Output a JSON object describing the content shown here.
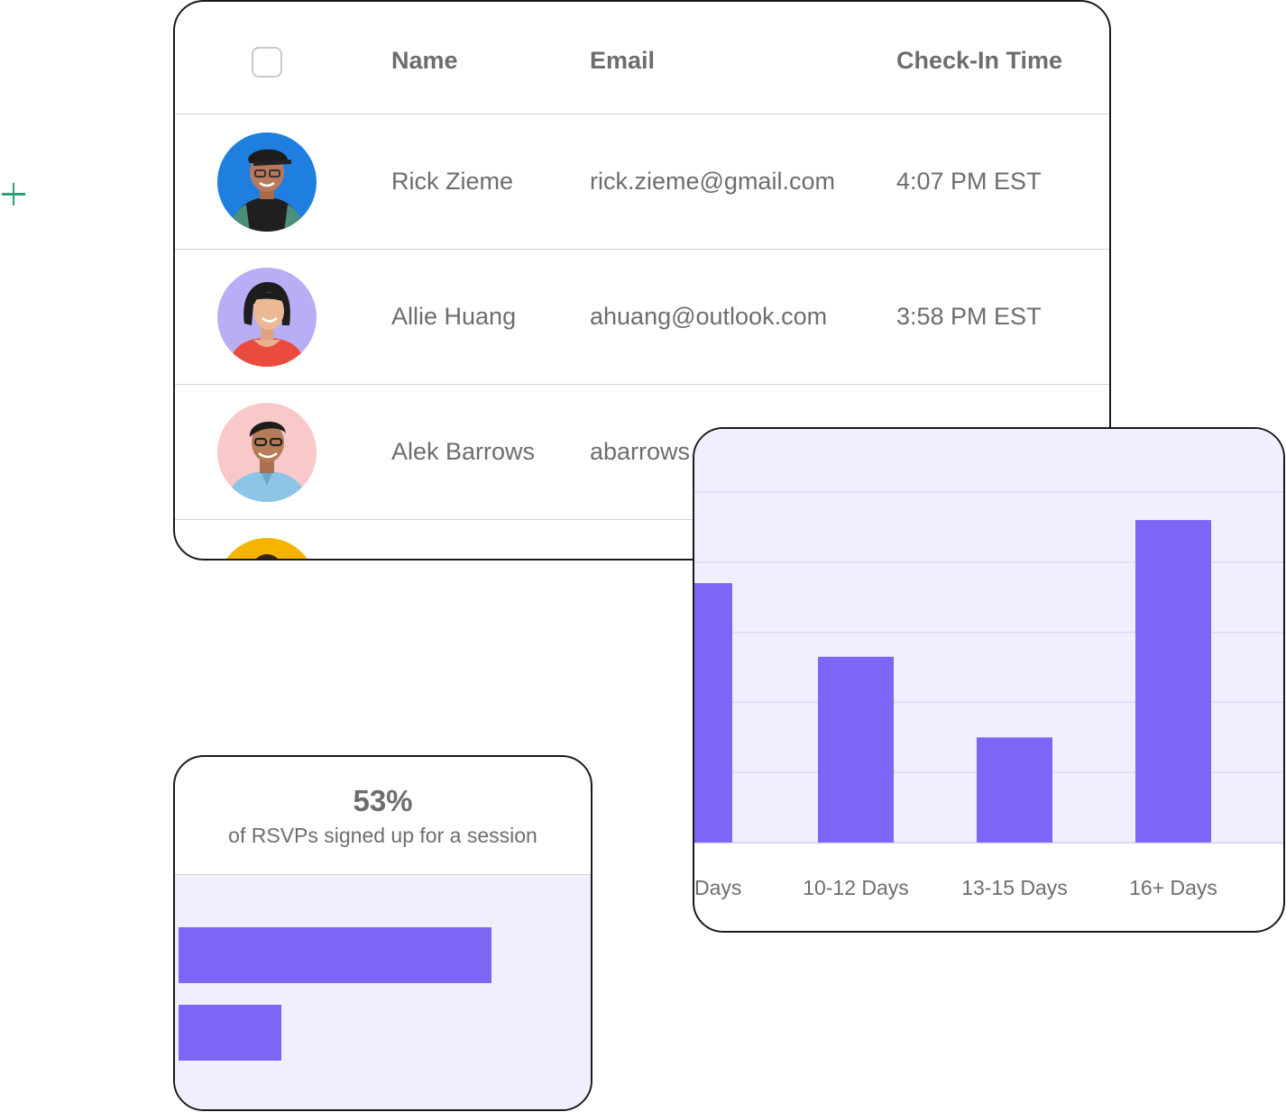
{
  "table": {
    "headers": {
      "name": "Name",
      "email": "Email",
      "checkin": "Check-In Time"
    },
    "rows": [
      {
        "name": "Rick Zieme",
        "email": "rick.zieme@gmail.com",
        "time": "4:07 PM EST",
        "avatar_bg": "#1f7fe0"
      },
      {
        "name": "Allie Huang",
        "email": "ahuang@outlook.com",
        "time": "3:58 PM EST",
        "avatar_bg": "#b9aef5"
      },
      {
        "name": "Alek Barrows",
        "email": "abarrows",
        "time": "",
        "avatar_bg": "#f9c9c9"
      },
      {
        "name": "",
        "email": "",
        "time": "",
        "avatar_bg": "#f5b400"
      }
    ]
  },
  "chart_data": {
    "type": "bar",
    "categories": [
      "Days",
      "10-12 Days",
      "13-15 Days",
      "16+ Days"
    ],
    "values": [
      3.7,
      2.65,
      1.5,
      4.6
    ],
    "ylim": [
      0,
      5
    ],
    "grid": true,
    "bar_color": "#7f65f5",
    "background": "#f0efff"
  },
  "rsvp": {
    "percent": "53%",
    "caption": "of RSVPs signed up for a session",
    "bars": [
      0.76,
      0.25
    ],
    "bar_color": "#7f65f5"
  }
}
